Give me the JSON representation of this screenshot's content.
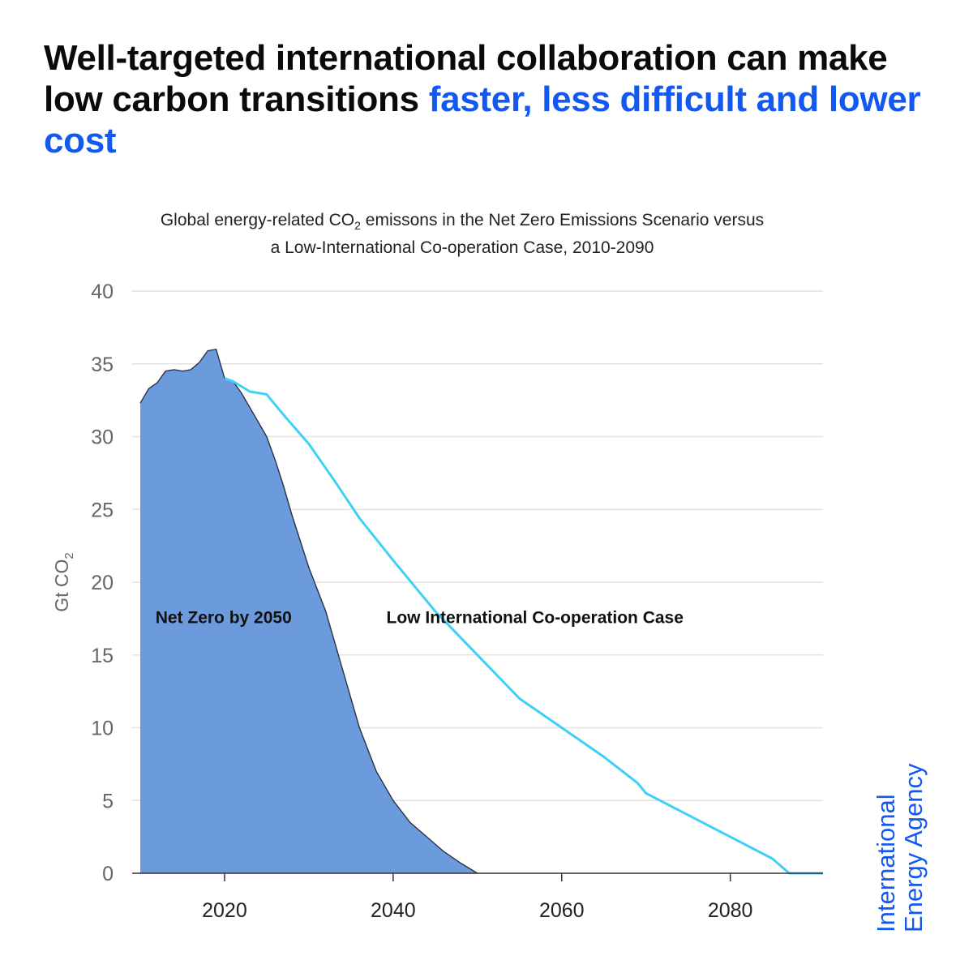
{
  "headline": {
    "text_plain": "Well-targeted international collaboration can make low carbon transitions",
    "text_highlight": "faster, less difficult and lower cost"
  },
  "brand": {
    "line1": "International",
    "line2": "Energy Agency"
  },
  "colors": {
    "accent": "#1358f0",
    "area_fill": "#6b9bdd",
    "area_outline": "#2a3344",
    "lic_line": "#3ed0f5",
    "grid": "#e2e2e2",
    "axis": "#333333",
    "tick_text": "#666666"
  },
  "chart_data": {
    "type": "area",
    "title": {
      "part1": "Global energy-related CO",
      "sub": "2",
      "part2": " emissons in the Net Zero Emissions Scenario versus",
      "line2": "a Low-International Co-operation Case, 2010-2090"
    },
    "ylabel": {
      "main": "Gt CO",
      "sub": "2"
    },
    "xlabel": "",
    "xlim": [
      2010,
      2091
    ],
    "ylim": [
      0,
      40
    ],
    "x_ticks": [
      2020,
      2040,
      2060,
      2080
    ],
    "y_ticks": [
      0,
      5,
      10,
      15,
      20,
      25,
      30,
      35,
      40
    ],
    "series": [
      {
        "name": "Net Zero by 2050",
        "style": "filled-area",
        "points": [
          [
            2010,
            32.3
          ],
          [
            2011,
            33.3
          ],
          [
            2012,
            33.7
          ],
          [
            2013,
            34.5
          ],
          [
            2014,
            34.6
          ],
          [
            2015,
            34.5
          ],
          [
            2016,
            34.6
          ],
          [
            2017,
            35.1
          ],
          [
            2018,
            35.9
          ],
          [
            2019,
            36.0
          ],
          [
            2020,
            34.0
          ],
          [
            2021,
            33.8
          ],
          [
            2022,
            33.0
          ],
          [
            2023,
            32.0
          ],
          [
            2024,
            31.0
          ],
          [
            2025,
            30.0
          ],
          [
            2026,
            28.4
          ],
          [
            2027,
            26.6
          ],
          [
            2028,
            24.6
          ],
          [
            2030,
            21.0
          ],
          [
            2032,
            18.0
          ],
          [
            2034,
            14.0
          ],
          [
            2036,
            10.0
          ],
          [
            2038,
            7.0
          ],
          [
            2040,
            5.0
          ],
          [
            2042,
            3.5
          ],
          [
            2044,
            2.5
          ],
          [
            2046,
            1.5
          ],
          [
            2048,
            0.7
          ],
          [
            2050,
            0
          ]
        ]
      },
      {
        "name": "Low International Co-operation Case",
        "style": "line",
        "points": [
          [
            2020,
            34.0
          ],
          [
            2021,
            33.8
          ],
          [
            2023,
            33.1
          ],
          [
            2025,
            32.9
          ],
          [
            2027,
            31.5
          ],
          [
            2030,
            29.5
          ],
          [
            2033,
            27.0
          ],
          [
            2036,
            24.4
          ],
          [
            2040,
            21.5
          ],
          [
            2045,
            18.0
          ],
          [
            2050,
            15.0
          ],
          [
            2055,
            12.0
          ],
          [
            2060,
            10.0
          ],
          [
            2065,
            8.0
          ],
          [
            2069,
            6.2
          ],
          [
            2070,
            5.5
          ],
          [
            2075,
            4.0
          ],
          [
            2080,
            2.5
          ],
          [
            2085,
            1.0
          ],
          [
            2087,
            0
          ],
          [
            2091,
            0
          ]
        ]
      }
    ],
    "annotations": [
      {
        "text": "Net Zero by 2050",
        "x": 2011.8,
        "y": 17.2
      },
      {
        "text": "Low International Co-operation Case",
        "x": 2039.2,
        "y": 17.2
      }
    ]
  }
}
